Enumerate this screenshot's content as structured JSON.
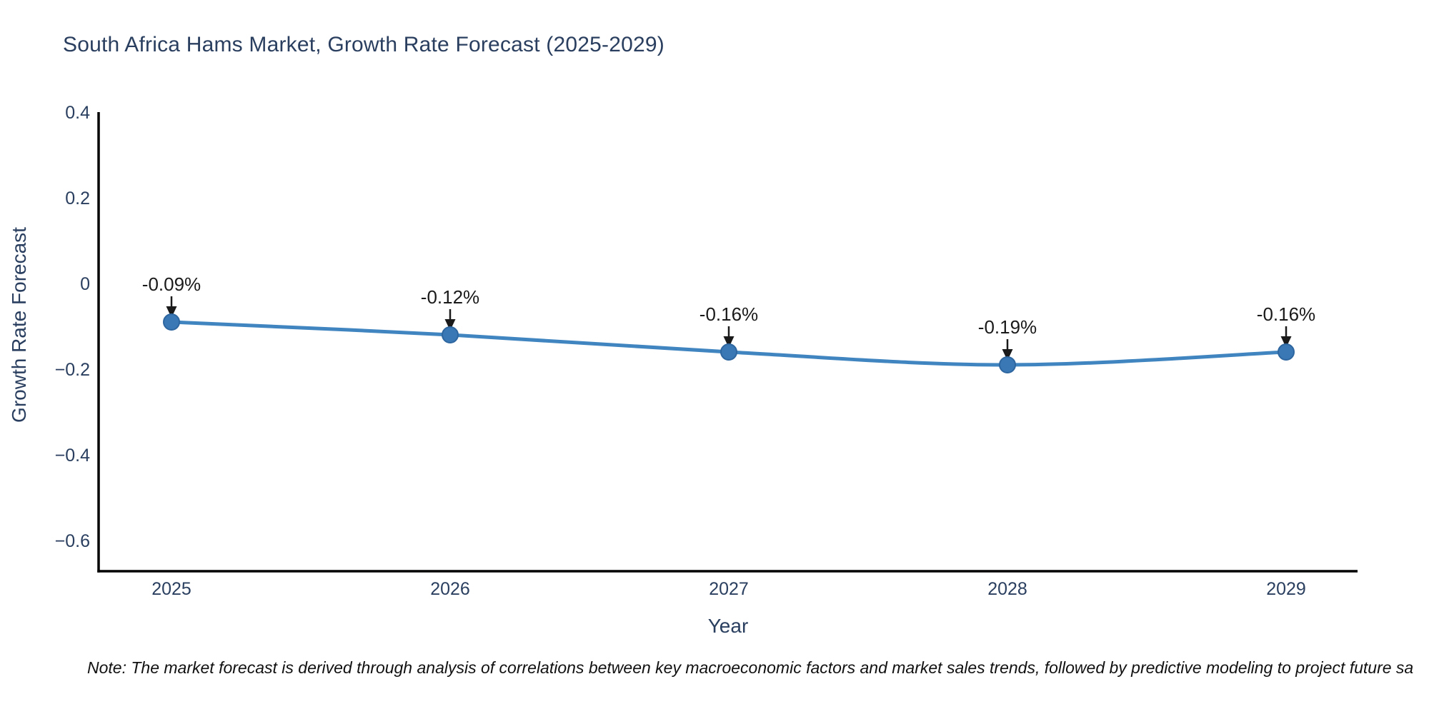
{
  "note": "Note: The market forecast is derived through analysis of correlations between key macroeconomic factors and market sales trends, followed by predictive modeling to project future sa",
  "chart_data": {
    "type": "line",
    "title": "South Africa Hams Market, Growth Rate Forecast (2025-2029)",
    "xlabel": "Year",
    "ylabel": "Growth Rate Forecast",
    "x": [
      2025,
      2026,
      2027,
      2028,
      2029
    ],
    "series": [
      {
        "name": "Growth Rate Forecast",
        "values": [
          -0.09,
          -0.12,
          -0.16,
          -0.19,
          -0.16
        ]
      }
    ],
    "point_labels": [
      "-0.09%",
      "-0.12%",
      "-0.16%",
      "-0.19%",
      "-0.16%"
    ],
    "y_ticks": [
      0.4,
      0.2,
      0,
      -0.2,
      -0.4,
      -0.6
    ],
    "ylim": [
      -0.67,
      0.4
    ],
    "grid": false,
    "legend_position": "none",
    "line_shape": "spline",
    "colors": {
      "line": "#4185c0",
      "marker": "#3a78b5",
      "marker_edge": "#2e66a0",
      "annotation": "#1a1a1a",
      "axis_text": "#2a3f5f",
      "spine": "#000000"
    }
  }
}
